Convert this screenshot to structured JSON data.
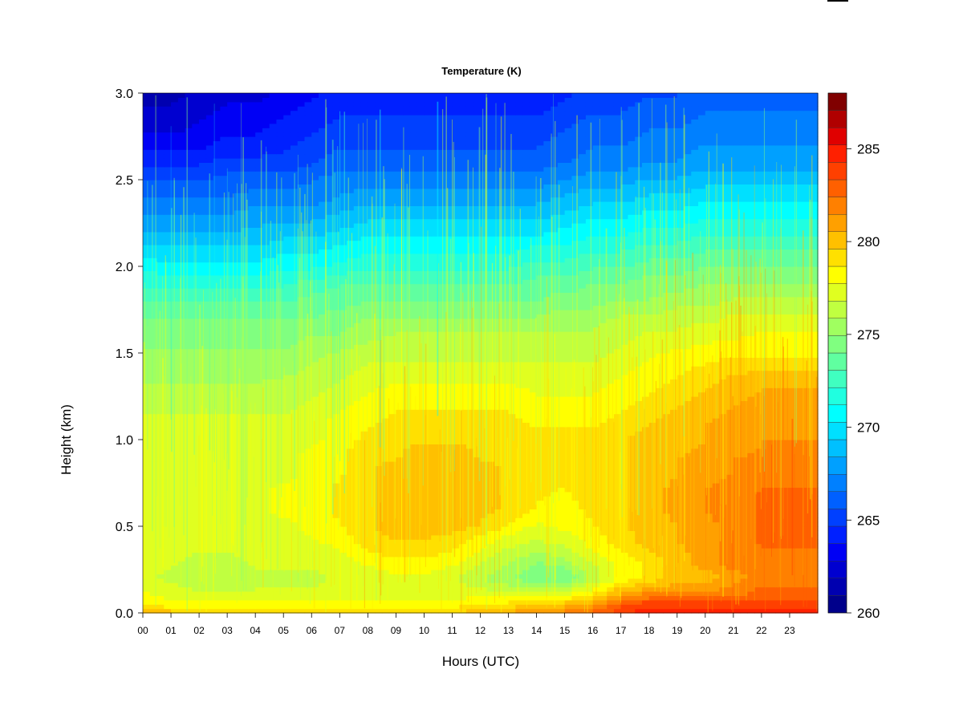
{
  "chart_data": {
    "type": "heatmap",
    "title": "Temperature (K)",
    "xlabel": "Hours (UTC)",
    "ylabel": "Height (km)",
    "x_ticks": [
      "00",
      "01",
      "02",
      "03",
      "04",
      "05",
      "06",
      "07",
      "08",
      "09",
      "10",
      "11",
      "12",
      "13",
      "14",
      "15",
      "16",
      "17",
      "18",
      "19",
      "20",
      "21",
      "22",
      "23"
    ],
    "y_ticks": [
      "0.0",
      "0.5",
      "1.0",
      "1.5",
      "2.0",
      "2.5",
      "3.0"
    ],
    "xlim": [
      0,
      24
    ],
    "ylim": [
      0,
      3
    ],
    "colorbar": {
      "ticks": [
        "260",
        "265",
        "270",
        "275",
        "280",
        "285"
      ],
      "range": [
        260,
        288
      ],
      "levels": [
        260,
        261,
        262,
        263,
        264,
        265,
        266,
        267,
        268,
        269,
        270,
        271,
        272,
        273,
        274,
        275,
        276,
        277,
        278,
        279,
        280,
        281,
        282,
        283,
        284,
        285,
        286,
        287,
        288
      ],
      "colors": [
        "#00008b",
        "#0000b0",
        "#0000d0",
        "#0000f5",
        "#0020ff",
        "#0040ff",
        "#0060ff",
        "#0080ff",
        "#00a0ff",
        "#00c0ff",
        "#00e0ff",
        "#00ffff",
        "#20ffe0",
        "#40ffc0",
        "#60ffa0",
        "#80ff80",
        "#a0ff60",
        "#c0ff40",
        "#e0ff20",
        "#ffff00",
        "#ffe000",
        "#ffc000",
        "#ffa000",
        "#ff8000",
        "#ff6000",
        "#ff4000",
        "#ff2000",
        "#e00000",
        "#b00000",
        "#800000"
      ]
    },
    "hours": [
      0,
      1,
      2,
      3,
      4,
      5,
      6,
      7,
      8,
      9,
      10,
      11,
      12,
      13,
      14,
      15,
      16,
      17,
      18,
      19,
      20,
      21,
      22,
      23,
      24
    ],
    "heights": [
      0.0,
      0.05,
      0.1,
      0.2,
      0.3,
      0.4,
      0.5,
      0.6,
      0.7,
      0.8,
      0.9,
      1.0,
      1.1,
      1.2,
      1.3,
      1.4,
      1.5,
      1.6,
      1.7,
      1.8,
      1.9,
      2.0,
      2.1,
      2.2,
      2.3,
      2.4,
      2.5,
      2.6,
      2.7,
      2.8,
      2.9,
      3.0
    ],
    "values": [
      [
        281,
        280,
        280,
        280,
        280,
        280,
        280,
        280,
        280,
        280,
        280,
        280,
        280,
        281,
        281,
        282,
        283,
        284,
        285,
        285,
        285,
        285,
        285,
        285,
        285
      ],
      [
        279,
        278,
        278,
        278,
        278,
        278,
        278,
        278,
        278,
        278,
        278,
        278,
        279,
        279,
        280,
        280,
        281,
        283,
        284,
        284,
        284,
        284,
        284,
        284,
        284
      ],
      [
        278,
        277.5,
        277,
        277,
        277,
        277,
        277,
        277,
        277.5,
        277.5,
        277.5,
        277.5,
        277.5,
        277.5,
        277.5,
        278,
        279,
        281,
        282,
        282,
        282,
        282,
        283,
        283,
        283
      ],
      [
        277,
        276.5,
        276,
        276,
        276.5,
        276.5,
        276.5,
        277,
        277,
        277.5,
        277.5,
        277,
        276,
        275,
        274,
        274,
        276,
        278,
        279,
        280,
        280,
        281,
        282,
        282,
        282
      ],
      [
        277,
        277,
        276.5,
        276.5,
        277,
        277,
        277,
        277,
        278,
        278.5,
        278.5,
        278,
        277,
        276,
        275,
        275.5,
        277,
        278,
        279,
        280,
        281,
        282,
        282,
        282,
        282
      ],
      [
        277.5,
        277.5,
        277,
        277,
        277.5,
        277.5,
        277.5,
        278,
        279,
        279.5,
        279.5,
        279,
        278,
        277,
        276.5,
        277,
        278,
        279,
        280,
        280.5,
        281,
        282,
        282.5,
        282.5,
        282.5
      ],
      [
        277.5,
        277.5,
        277.5,
        277.5,
        277.5,
        277.5,
        278,
        278.5,
        279.5,
        280,
        280,
        280,
        279.5,
        278.5,
        277.5,
        278,
        278.5,
        279.5,
        280,
        280.5,
        281,
        282,
        282.5,
        282.5,
        282.5
      ],
      [
        277.5,
        277.5,
        277.5,
        277.5,
        277.5,
        278,
        278,
        279,
        279.5,
        280,
        280,
        280,
        280,
        279.5,
        278.5,
        278,
        279,
        279.5,
        280,
        281,
        281.5,
        282,
        282.5,
        282.5,
        282.5
      ],
      [
        277.5,
        277.5,
        277.5,
        277.5,
        277.5,
        278,
        278,
        279,
        279.5,
        280,
        280,
        280,
        280,
        279.5,
        279,
        278.5,
        279.5,
        279.5,
        280,
        281,
        281.5,
        282,
        282.5,
        282.5,
        282.5
      ],
      [
        277.5,
        277.5,
        277.5,
        277.5,
        277.5,
        277.5,
        278,
        278.5,
        279.5,
        280,
        280,
        280,
        280,
        279.5,
        279,
        279,
        279.5,
        279.5,
        280,
        280.5,
        281,
        281.5,
        282,
        282,
        282
      ],
      [
        277.5,
        277.5,
        277.5,
        277.5,
        277.5,
        277.5,
        278,
        278.5,
        279.5,
        279.5,
        280,
        280,
        279.5,
        279.5,
        279,
        279,
        279,
        279.5,
        280,
        280.5,
        281,
        281.5,
        281.5,
        281.5,
        281.5
      ],
      [
        277,
        277,
        277,
        277,
        277,
        277,
        277.5,
        278,
        279,
        279.5,
        279.5,
        279.5,
        279.5,
        279,
        279,
        279,
        279,
        279.5,
        280,
        280,
        280.5,
        281,
        281.5,
        281.5,
        281.5
      ],
      [
        277,
        277,
        277,
        277,
        277,
        277,
        277.5,
        278,
        278.5,
        279,
        279,
        279,
        279,
        279,
        278.5,
        278.5,
        278.5,
        279,
        279.5,
        280,
        280.5,
        281,
        281,
        281,
        281
      ],
      [
        276.5,
        276.5,
        276.5,
        276.5,
        276.5,
        276.5,
        277,
        277.5,
        278,
        278.5,
        278.5,
        278.5,
        278.5,
        278.5,
        278,
        278,
        278,
        278.5,
        279,
        279.5,
        280,
        280.5,
        281,
        281,
        281
      ],
      [
        276,
        276,
        276,
        276,
        276,
        276.5,
        276.5,
        277,
        277.5,
        278,
        278,
        278,
        278,
        278,
        277.5,
        277.5,
        277.5,
        278,
        278.5,
        279,
        279.5,
        280,
        280.5,
        280.5,
        280.5
      ],
      [
        275.5,
        275.5,
        275.5,
        275.5,
        275.5,
        275.5,
        276,
        276.5,
        277,
        277,
        277,
        277,
        277,
        277,
        277,
        277,
        277,
        277.5,
        278,
        278.5,
        279,
        279.5,
        279.5,
        279.5,
        279.5
      ],
      [
        275,
        275,
        275,
        275,
        275,
        275,
        275.5,
        276,
        276.5,
        276.5,
        276.5,
        276.5,
        276.5,
        276.5,
        276.5,
        276.5,
        276.5,
        277,
        277.5,
        278,
        278,
        278.5,
        278.5,
        278.5,
        278.5
      ],
      [
        274.5,
        274.5,
        274.5,
        274.5,
        274.5,
        274.5,
        275,
        275,
        275.5,
        276,
        276,
        276,
        276,
        276,
        276,
        276,
        276,
        276.5,
        277,
        277,
        277.5,
        277.5,
        278,
        278,
        278
      ],
      [
        274,
        274,
        274,
        274,
        274,
        274,
        274,
        274.5,
        275,
        275,
        275,
        275,
        275,
        275,
        275,
        275.5,
        275.5,
        276,
        276,
        276.5,
        276.5,
        277,
        277,
        277,
        277
      ],
      [
        273,
        273,
        273,
        273,
        273,
        273,
        273.5,
        273.5,
        274,
        274,
        274,
        274,
        274,
        274,
        274,
        274.5,
        274.5,
        275,
        275,
        275.5,
        275.5,
        276,
        276,
        276,
        276
      ],
      [
        272,
        272,
        272,
        272,
        272,
        272,
        272.5,
        273,
        273,
        273,
        273,
        273,
        273,
        273,
        273.5,
        273.5,
        274,
        274,
        274.5,
        274.5,
        275,
        275,
        275,
        275,
        275
      ],
      [
        271,
        270.5,
        270.5,
        270.5,
        270.5,
        271,
        271,
        271.5,
        272,
        272,
        272,
        272,
        272,
        272,
        272.5,
        272.5,
        273,
        273,
        273.5,
        273.5,
        274,
        274,
        274,
        274,
        274
      ],
      [
        269.5,
        269.5,
        269.5,
        269.5,
        269.5,
        270,
        270,
        270.5,
        271,
        271,
        271,
        271,
        271,
        271,
        271.5,
        271.5,
        272,
        272,
        272.5,
        272.5,
        273,
        273,
        273,
        273,
        273
      ],
      [
        268.5,
        268.5,
        268.5,
        268.5,
        268.5,
        269,
        269,
        269.5,
        270,
        270,
        270,
        270,
        270,
        270,
        270,
        270.5,
        271,
        271,
        271.5,
        271.5,
        272,
        272,
        272,
        272,
        272
      ],
      [
        267.5,
        267.5,
        267.5,
        267.5,
        268,
        268,
        268,
        268.5,
        269,
        269,
        269,
        269,
        269,
        269,
        269,
        269.5,
        270,
        270,
        270.5,
        270.5,
        271,
        271,
        271,
        271,
        271
      ],
      [
        266.5,
        266.5,
        266.5,
        266.5,
        267,
        267,
        267,
        267.5,
        268,
        268,
        268,
        268,
        268,
        268,
        268,
        268.5,
        269,
        269,
        269.5,
        269.5,
        270,
        270,
        270,
        270,
        270
      ],
      [
        265.5,
        265.5,
        265.5,
        266,
        266,
        266,
        266.5,
        267,
        267,
        267,
        267,
        267,
        267,
        267,
        267,
        267.5,
        268,
        268,
        268.5,
        268.5,
        269,
        269,
        269,
        269,
        269
      ],
      [
        264.5,
        264.5,
        264.5,
        265,
        265,
        265,
        265.5,
        266,
        266,
        266,
        266,
        266,
        266,
        266,
        266,
        266.5,
        267,
        267,
        267.5,
        267.5,
        268,
        268,
        268,
        268,
        268
      ],
      [
        263.5,
        263.5,
        263.5,
        264,
        264,
        264.5,
        265,
        265.5,
        265.5,
        265.5,
        265.5,
        265.5,
        265.5,
        265.5,
        265.5,
        266,
        266.5,
        266.5,
        267,
        267,
        267.5,
        267.5,
        267.5,
        267.5,
        267.5
      ],
      [
        262.5,
        262.5,
        263,
        263.5,
        263.5,
        264,
        264.5,
        265,
        265,
        265,
        265,
        265,
        265,
        265,
        265,
        265.5,
        266,
        266,
        266.5,
        266.5,
        267,
        267,
        267,
        267,
        267
      ],
      [
        262,
        262,
        262.5,
        263,
        263,
        263.5,
        264,
        264.5,
        264.5,
        264.5,
        264.5,
        264.5,
        264.5,
        264.5,
        264.5,
        265,
        265.5,
        265.5,
        266,
        266,
        266.5,
        266.5,
        266.5,
        266.5,
        266.5
      ],
      [
        261.5,
        261.5,
        262,
        262.5,
        262.5,
        263,
        263.5,
        264,
        264,
        264,
        264,
        264,
        264,
        264,
        264,
        264.5,
        265,
        265,
        265.5,
        265.5,
        266,
        266,
        266,
        266,
        266
      ]
    ]
  }
}
